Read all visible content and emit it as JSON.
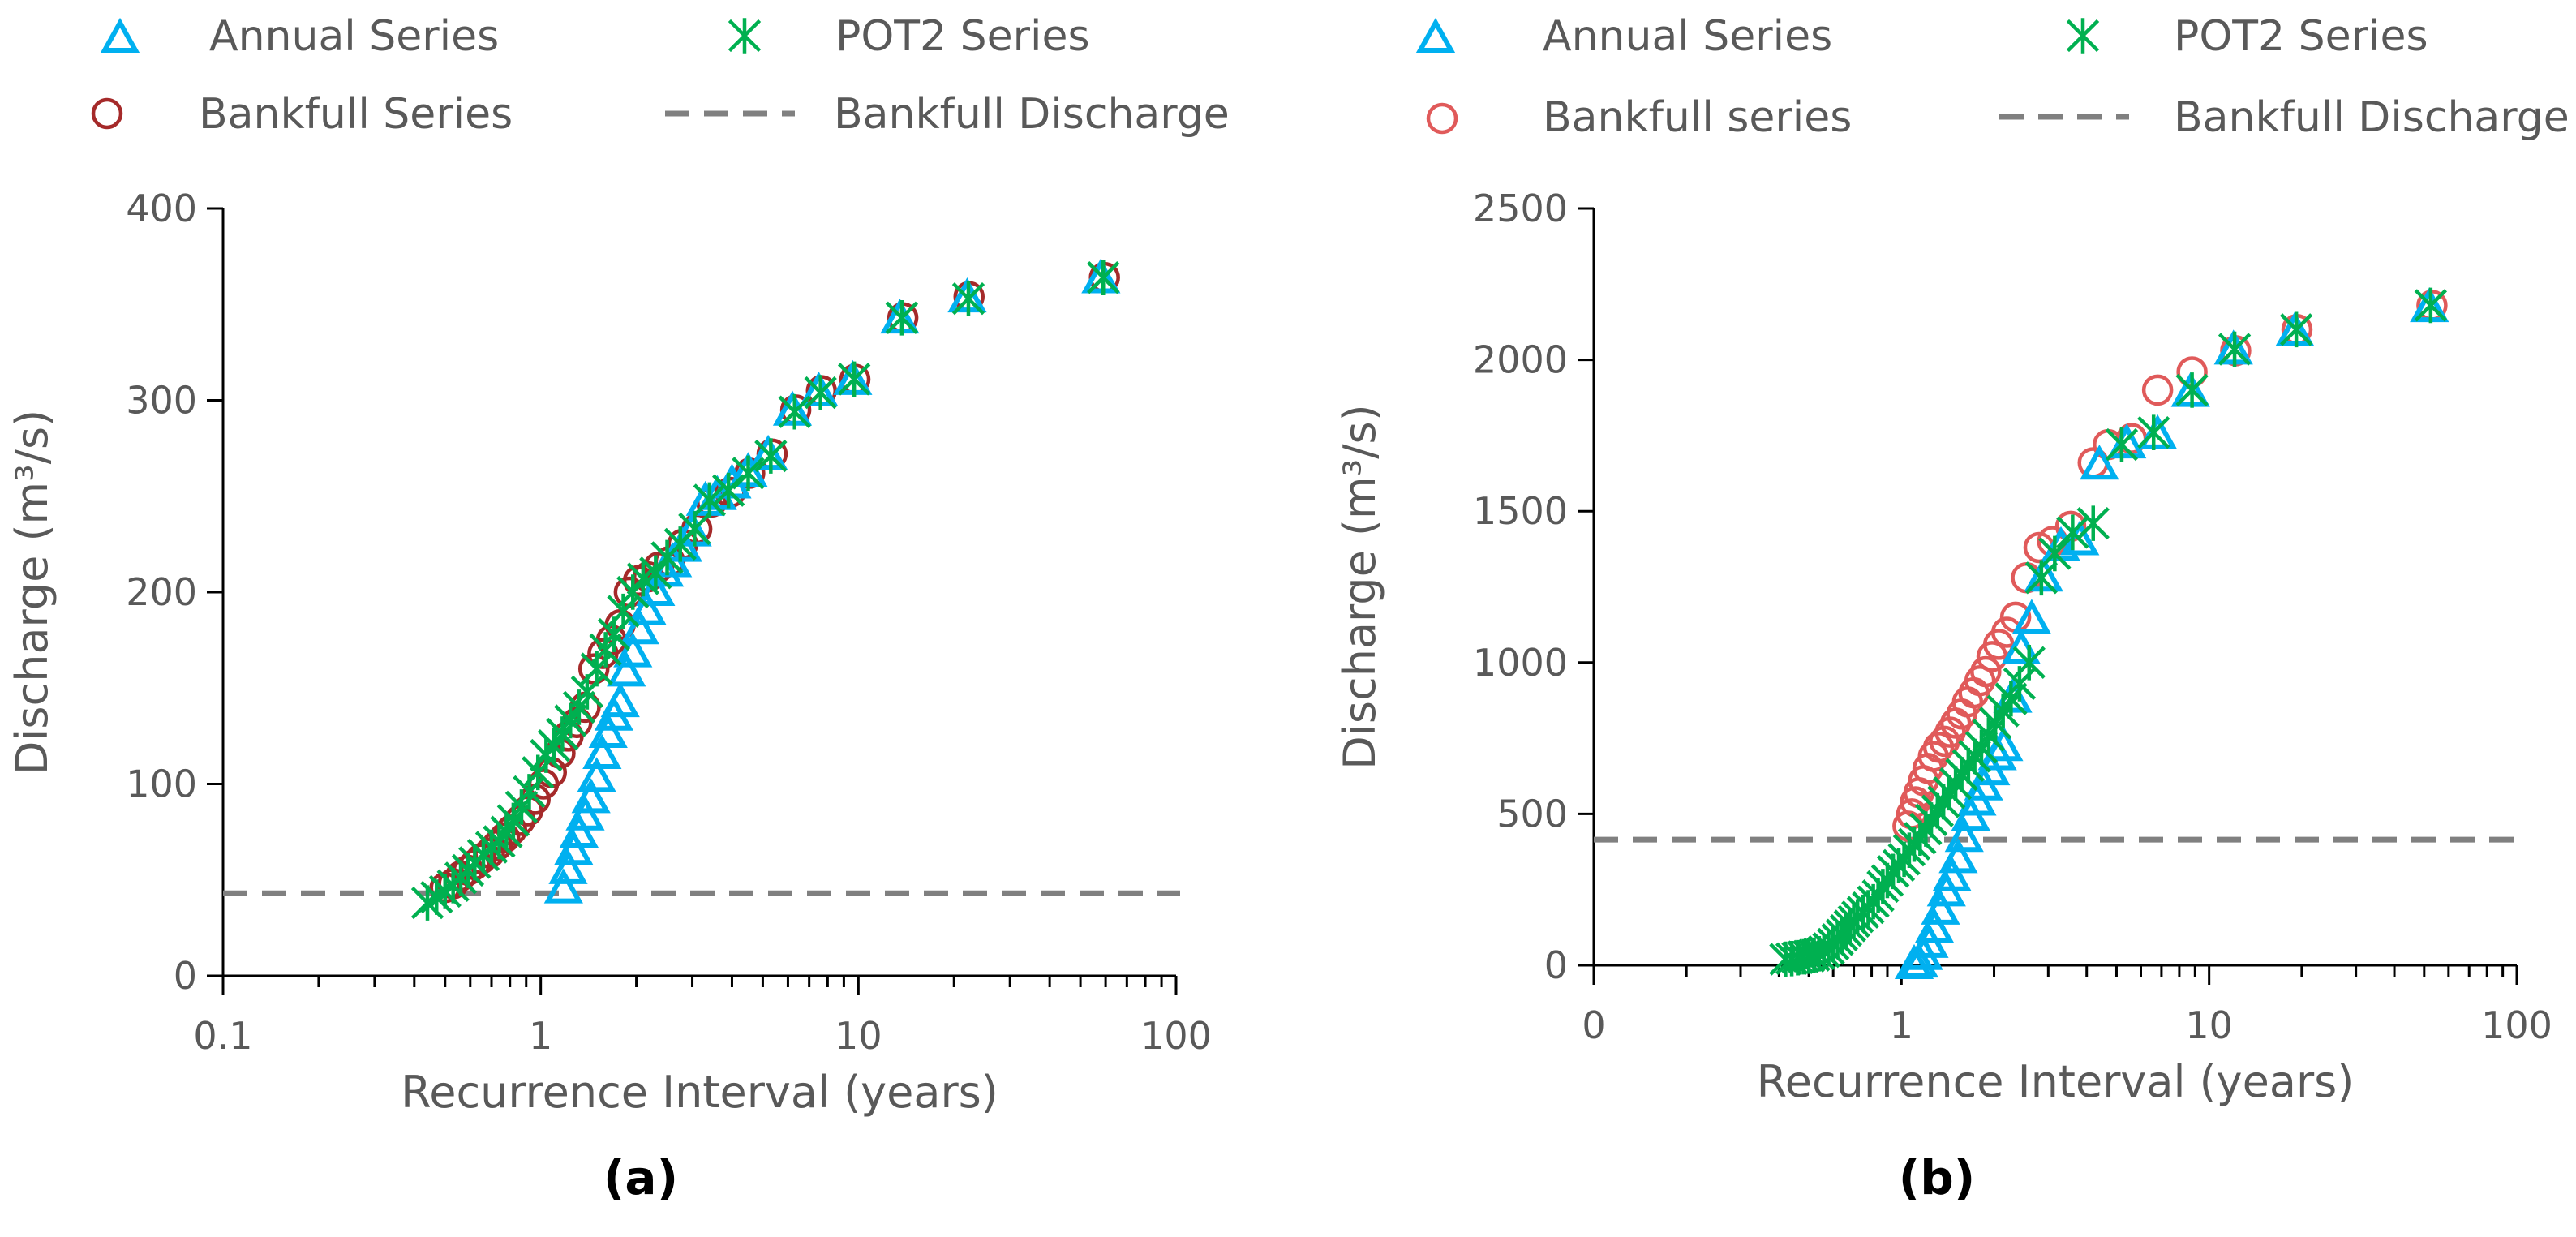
{
  "colors": {
    "annual": "#00B0F0",
    "pot2": "#00B050",
    "bankfull_a": "#A52A2A",
    "bankfull_b": "#E05A5A",
    "bankfull_line": "#808080"
  },
  "chart_data": [
    {
      "type": "scatter",
      "panel_label": "(a)",
      "xlabel": "Recurrence Interval (years)",
      "ylabel": "Discharge (m³/s)",
      "xscale": "log",
      "xlim": [
        0.1,
        100
      ],
      "ylim": [
        0,
        400
      ],
      "x_ticks": [
        0.1,
        1,
        10,
        100
      ],
      "x_tick_labels": [
        "0.1",
        "1",
        "10",
        "100"
      ],
      "y_ticks": [
        0,
        100,
        200,
        300,
        400
      ],
      "y_tick_labels": [
        "0",
        "100",
        "200",
        "300",
        "400"
      ],
      "legend": {
        "annual": "Annual Series",
        "pot2": "POT2 Series",
        "bankfull": "Bankfull Series",
        "bankfull_discharge": "Bankfull Discharge"
      },
      "bankfull_discharge": 43,
      "series": [
        {
          "name": "Annual Series",
          "marker": "triangle",
          "x": [
            1.18,
            1.22,
            1.27,
            1.32,
            1.38,
            1.44,
            1.5,
            1.56,
            1.63,
            1.7,
            1.78,
            1.86,
            1.95,
            2.05,
            2.16,
            2.3,
            2.45,
            2.6,
            2.8,
            3.0,
            3.3,
            3.6,
            4.0,
            4.5,
            5.2,
            6.2,
            7.5,
            9.6,
            13.5,
            22,
            58
          ],
          "y": [
            45,
            55,
            65,
            74,
            83,
            92,
            103,
            115,
            126,
            135,
            142,
            158,
            168,
            180,
            190,
            200,
            210,
            215,
            223,
            231,
            247,
            250,
            256,
            262,
            271,
            294,
            304,
            310,
            342,
            353,
            363
          ]
        },
        {
          "name": "POT2 Series",
          "marker": "asterisk",
          "x": [
            0.44,
            0.47,
            0.5,
            0.53,
            0.56,
            0.59,
            0.62,
            0.66,
            0.7,
            0.74,
            0.78,
            0.82,
            0.87,
            0.92,
            0.98,
            1.04,
            1.1,
            1.17,
            1.24,
            1.32,
            1.4,
            1.5,
            1.6,
            1.7,
            1.82,
            1.95,
            2.1,
            2.3,
            2.5,
            2.75,
            3.05,
            3.4,
            3.9,
            4.5,
            5.3,
            6.3,
            7.6,
            9.7,
            13.7,
            22.2,
            59
          ],
          "y": [
            38,
            41,
            44,
            47,
            51,
            55,
            59,
            63,
            67,
            70,
            75,
            81,
            88,
            96,
            106,
            115,
            120,
            126,
            133,
            140,
            148,
            160,
            170,
            178,
            190,
            200,
            207,
            210,
            218,
            225,
            233,
            248,
            253,
            262,
            271,
            294,
            304,
            311,
            343,
            353,
            364
          ]
        },
        {
          "name": "Bankfull Series",
          "marker": "circle",
          "x": [
            0.5,
            0.53,
            0.56,
            0.59,
            0.62,
            0.65,
            0.69,
            0.73,
            0.77,
            0.81,
            0.86,
            0.91,
            0.96,
            1.02,
            1.08,
            1.15,
            1.22,
            1.3,
            1.38,
            1.47,
            1.57,
            1.67,
            1.78,
            1.9,
            2.03,
            2.18,
            2.35,
            2.55,
            2.8,
            3.1,
            3.45,
            3.95,
            4.55,
            5.35,
            6.35,
            7.65,
            9.75,
            13.8,
            22.3,
            59.5
          ],
          "y": [
            46,
            48,
            52,
            55,
            58,
            61,
            64,
            68,
            72,
            76,
            81,
            86,
            92,
            100,
            106,
            116,
            125,
            132,
            140,
            160,
            168,
            175,
            183,
            200,
            206,
            208,
            213,
            216,
            225,
            233,
            247,
            252,
            262,
            272,
            295,
            305,
            311,
            343,
            354,
            364
          ]
        }
      ]
    },
    {
      "type": "scatter",
      "panel_label": "(b)",
      "xlabel": "Recurrence Interval (years)",
      "ylabel": "Discharge (m³/s)",
      "xscale": "log",
      "xlim": [
        0.1,
        100
      ],
      "ylim": [
        0,
        2500
      ],
      "x_ticks": [
        0.1,
        1,
        10,
        100
      ],
      "x_tick_labels": [
        "0",
        "1",
        "10",
        "100"
      ],
      "y_ticks": [
        0,
        500,
        1000,
        1500,
        2000,
        2500
      ],
      "y_tick_labels": [
        "0",
        "500",
        "1000",
        "1500",
        "2000",
        "2500"
      ],
      "legend": {
        "annual": "Annual Series",
        "pot2": "POT2 Series",
        "bankfull": "Bankfull series",
        "bankfull_discharge": "Bankfull Discharge"
      },
      "bankfull_discharge": 415,
      "series": [
        {
          "name": "Annual Series",
          "marker": "triangle",
          "x": [
            1.1,
            1.14,
            1.18,
            1.23,
            1.28,
            1.34,
            1.4,
            1.46,
            1.53,
            1.6,
            1.68,
            1.76,
            1.85,
            1.95,
            2.05,
            2.15,
            2.3,
            2.45,
            2.65,
            2.9,
            3.3,
            3.8,
            4.4,
            5.4,
            6.8,
            8.7,
            12,
            19,
            52
          ],
          "y": [
            0,
            5,
            30,
            70,
            120,
            180,
            240,
            290,
            350,
            420,
            490,
            540,
            590,
            640,
            690,
            720,
            880,
            1040,
            1140,
            1280,
            1380,
            1400,
            1650,
            1720,
            1750,
            1890,
            2030,
            2090,
            2170
          ]
        },
        {
          "name": "POT2 Series",
          "marker": "asterisk",
          "x": [
            0.42,
            0.44,
            0.46,
            0.48,
            0.5,
            0.52,
            0.54,
            0.56,
            0.58,
            0.6,
            0.62,
            0.64,
            0.66,
            0.68,
            0.7,
            0.72,
            0.75,
            0.78,
            0.81,
            0.84,
            0.87,
            0.9,
            0.94,
            0.98,
            1.02,
            1.06,
            1.1,
            1.15,
            1.2,
            1.25,
            1.31,
            1.37,
            1.43,
            1.5,
            1.57,
            1.65,
            1.73,
            1.82,
            1.92,
            2.02,
            2.14,
            2.27,
            2.42,
            2.6,
            2.85,
            3.15,
            3.6,
            4.2,
            5.2,
            6.6,
            8.8,
            12.1,
            19.2,
            52.5
          ],
          "y": [
            20,
            22,
            25,
            28,
            30,
            33,
            38,
            45,
            55,
            70,
            85,
            100,
            115,
            130,
            145,
            160,
            175,
            190,
            210,
            230,
            260,
            280,
            310,
            330,
            350,
            380,
            400,
            420,
            450,
            480,
            510,
            540,
            570,
            600,
            630,
            660,
            690,
            720,
            760,
            800,
            840,
            880,
            930,
            1000,
            1280,
            1360,
            1430,
            1460,
            1720,
            1760,
            1900,
            2035,
            2100,
            2180
          ]
        },
        {
          "name": "Bankfull series",
          "marker": "circle",
          "x": [
            1.05,
            1.08,
            1.11,
            1.14,
            1.18,
            1.22,
            1.27,
            1.32,
            1.38,
            1.44,
            1.5,
            1.57,
            1.64,
            1.72,
            1.8,
            1.88,
            1.97,
            2.07,
            2.2,
            2.35,
            2.55,
            2.8,
            3.1,
            3.55,
            4.2,
            4.7,
            5.6,
            6.8,
            8.8,
            12.2,
            19.3,
            53
          ],
          "y": [
            460,
            500,
            540,
            570,
            610,
            650,
            690,
            720,
            740,
            770,
            800,
            830,
            870,
            900,
            940,
            970,
            1020,
            1060,
            1100,
            1150,
            1280,
            1380,
            1400,
            1450,
            1660,
            1720,
            1740,
            1900,
            1960,
            2030,
            2100,
            2180
          ]
        }
      ]
    }
  ]
}
